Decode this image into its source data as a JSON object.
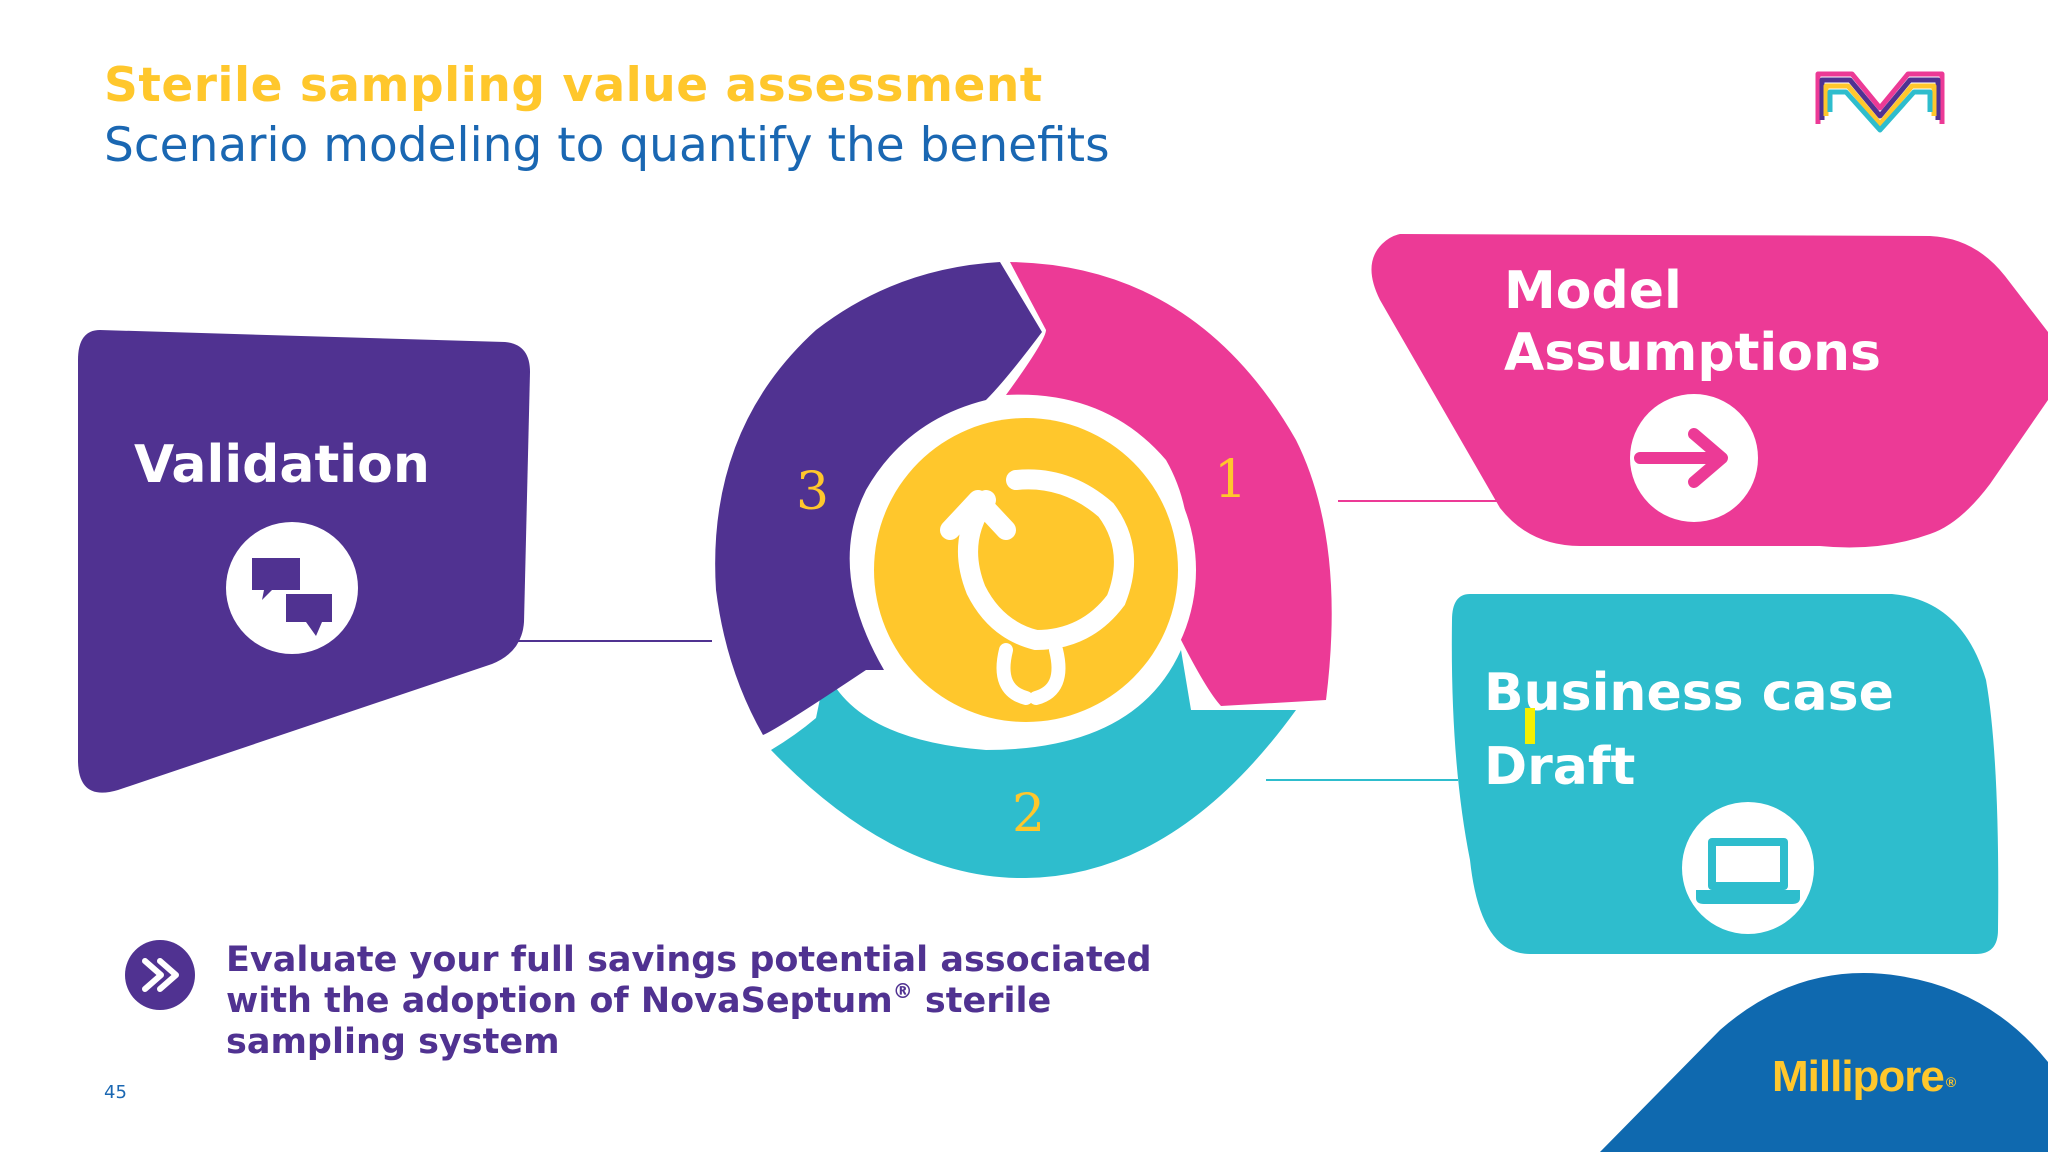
{
  "slide": {
    "title": "Sterile sampling value assessment",
    "subtitle": "Scenario modeling to quantify the benefits",
    "page_number": "45"
  },
  "cycle": {
    "steps": [
      {
        "number": "1",
        "color": "#ec3a96"
      },
      {
        "number": "2",
        "color": "#2ebdcd"
      },
      {
        "number": "3",
        "color": "#503291"
      }
    ],
    "center_icon": "refresh-cycle-icon",
    "center_color": "#ffc72c"
  },
  "boxes": {
    "validation": {
      "label": "Validation",
      "icon": "chat-bubbles-icon",
      "color": "#503291"
    },
    "model": {
      "label_line1": "Model",
      "label_line2": "Assumptions",
      "icon": "arrow-right-icon",
      "color": "#ec3a96"
    },
    "business": {
      "label_line1": "Business case",
      "label_line2": "Draft",
      "icon": "laptop-icon",
      "color": "#2ebdcd"
    }
  },
  "footer": {
    "icon": "double-chevron-icon",
    "text_part1": "Evaluate your full savings potential associated with the adoption of NovaSeptum",
    "registered": "®",
    "text_part2": " sterile sampling system"
  },
  "brand": {
    "name": "Millipore",
    "registered": "®",
    "logo": "m-logo-icon",
    "corner_color": "#0f69af"
  }
}
